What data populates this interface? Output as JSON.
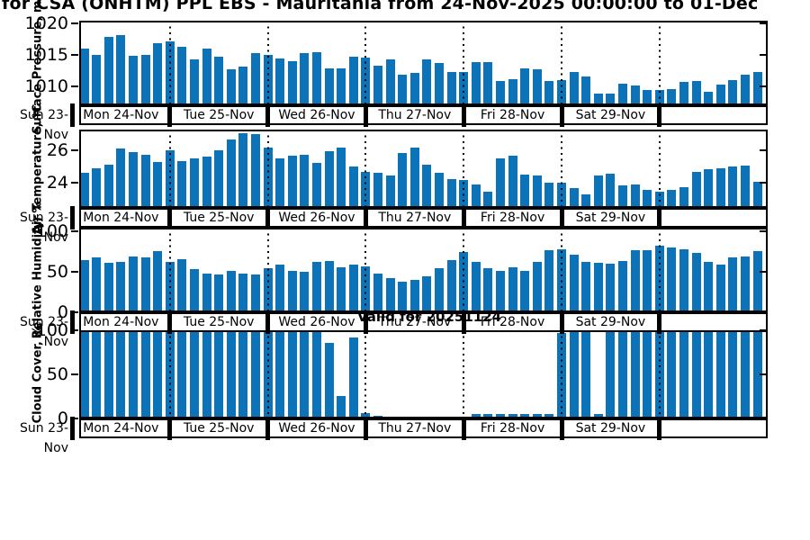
{
  "title": "for CSA (ONHTM) PPL EBS  - Mauritania from 24-Nov-2025 00:00:00 to 01-Dec",
  "valid_label": "Valid for 20251124",
  "left_axis_day_label": "Sun 23-Nov",
  "accent_color": "#0d73b9",
  "chart_data": {
    "type": "bar",
    "title": "for CSA (ONHTM) PPL EBS  - Mauritania from 24-Nov-2025 00:00:00 to 01-Dec",
    "x_start": "24-Nov-2025 03:00",
    "x_step_hours": 3,
    "n_bars": 56,
    "grid": "vertical-dotted-day-boundaries",
    "legend_position": "none",
    "day_labels": [
      "Mon 24-Nov",
      "Tue 25-Nov",
      "Wed 26-Nov",
      "Thu 27-Nov",
      "Fri 28-Nov",
      "Sat 29-Nov",
      ""
    ],
    "subplots": [
      {
        "name": "surface-pressure",
        "ylabel": "Surface Pressure, mb",
        "yticks": [
          1020,
          1015,
          1010
        ],
        "ylim": [
          1007.0,
          1020.5
        ],
        "values": [
          1016.0,
          1015.0,
          1017.9,
          1018.2,
          1014.9,
          1015.1,
          1016.9,
          1017.2,
          1016.3,
          1014.3,
          1016.0,
          1014.8,
          1012.7,
          1013.2,
          1015.3,
          1015.0,
          1014.4,
          1014.1,
          1015.4,
          1015.5,
          1012.9,
          1012.9,
          1014.8,
          1014.6,
          1013.3,
          1014.3,
          1011.9,
          1012.2,
          1014.3,
          1013.7,
          1012.3,
          1012.3,
          1013.9,
          1013.9,
          1010.9,
          1011.2,
          1012.9,
          1012.8,
          1010.9,
          1011.0,
          1012.3,
          1011.6,
          1008.9,
          1008.9,
          1010.4,
          1010.2,
          1009.5,
          1009.4,
          1009.6,
          1010.7,
          1010.9,
          1009.2,
          1010.3,
          1011.0,
          1011.9,
          1012.3
        ]
      },
      {
        "name": "air-temperature",
        "ylabel": "Air Temperature, °C",
        "yticks": [
          26,
          24
        ],
        "ylim": [
          22.4,
          27.3
        ],
        "values": [
          24.6,
          24.9,
          25.1,
          26.1,
          25.9,
          25.7,
          25.3,
          26.0,
          25.35,
          25.5,
          25.6,
          26.0,
          26.7,
          27.1,
          27.0,
          26.2,
          25.5,
          25.65,
          25.75,
          25.2,
          25.95,
          26.15,
          25.0,
          24.65,
          24.6,
          24.45,
          25.85,
          26.15,
          25.1,
          24.6,
          24.2,
          24.15,
          23.85,
          23.4,
          25.5,
          25.65,
          24.5,
          24.4,
          23.95,
          24.0,
          23.65,
          23.25,
          24.45,
          24.55,
          23.8,
          23.85,
          23.55,
          23.4,
          23.55,
          23.7,
          24.65,
          24.8,
          24.9,
          25.0,
          25.05,
          24.05
        ]
      },
      {
        "name": "relative-humidity",
        "ylabel": "Relative Humidity, %",
        "yticks": [
          100,
          50,
          0
        ],
        "ylim": [
          0,
          104
        ],
        "values": [
          64.5,
          67.7,
          60.7,
          61.8,
          68.8,
          67.0,
          75.1,
          62.4,
          65.3,
          53.0,
          47.7,
          46.0,
          50.5,
          47.7,
          46.0,
          54.7,
          59.0,
          51.2,
          49.5,
          61.8,
          63.5,
          55.4,
          58.2,
          56.5,
          48.0,
          42.0,
          37.5,
          40.0,
          44.0,
          54.0,
          64.5,
          74.0,
          62.4,
          54.0,
          51.2,
          55.8,
          51.2,
          61.5,
          75.8,
          77.5,
          70.5,
          62.4,
          60.3,
          59.2,
          63.5,
          76.3,
          75.8,
          82.0,
          80.0,
          77.5,
          72.6,
          61.8,
          58.5,
          67.4,
          69.0,
          75.3
        ]
      },
      {
        "name": "cloud-cover",
        "ylabel": "Cloud Cover, %",
        "yticks": [
          100,
          50,
          0
        ],
        "ylim": [
          0,
          100
        ],
        "values": [
          100,
          100,
          100,
          100,
          100,
          100,
          100,
          100,
          100,
          100,
          100,
          100,
          100,
          100,
          100,
          100,
          100,
          100,
          100,
          100,
          86,
          26,
          92,
          6,
          3,
          0,
          0,
          0,
          0,
          0,
          0,
          0,
          5,
          5,
          5,
          5,
          5,
          5,
          5,
          97,
          100,
          100,
          5,
          100,
          100,
          100,
          100,
          100,
          100,
          100,
          100,
          100,
          100,
          100,
          100,
          100
        ]
      }
    ]
  }
}
